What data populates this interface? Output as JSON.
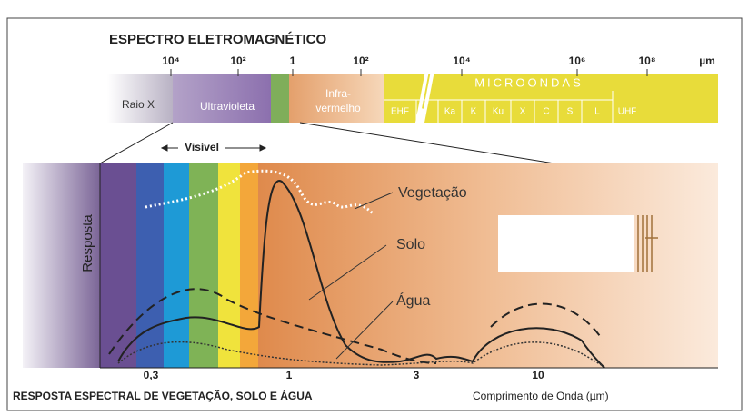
{
  "title": "ESPECTRO ELETROMAGNÉTICO",
  "spectrum_ticks": [
    "10⁴",
    "10²",
    "1",
    "10²",
    "10⁴",
    "10⁶",
    "10⁸"
  ],
  "unit": "µm",
  "bands": {
    "xray": "Raio X",
    "uv": "Ultravioleta",
    "ir_1": "Infra-",
    "ir_2": "vermelho",
    "microwave": "MICROONDAS",
    "microwave_bands": [
      "EHF",
      "Ka",
      "K",
      "Ku",
      "X",
      "C",
      "S",
      "L",
      "UHF"
    ]
  },
  "visible": "Visível",
  "y_label": "Resposta",
  "curves": [
    "Vegetação",
    "Solo",
    "Água"
  ],
  "x_ticks": [
    "0,3",
    "1",
    "3",
    "10"
  ],
  "footer_title": "RESPOSTA ESPECTRAL DE VEGETAÇÃO, SOLO E ÁGUA",
  "x_label": "Comprimento de Onda (µm)"
}
